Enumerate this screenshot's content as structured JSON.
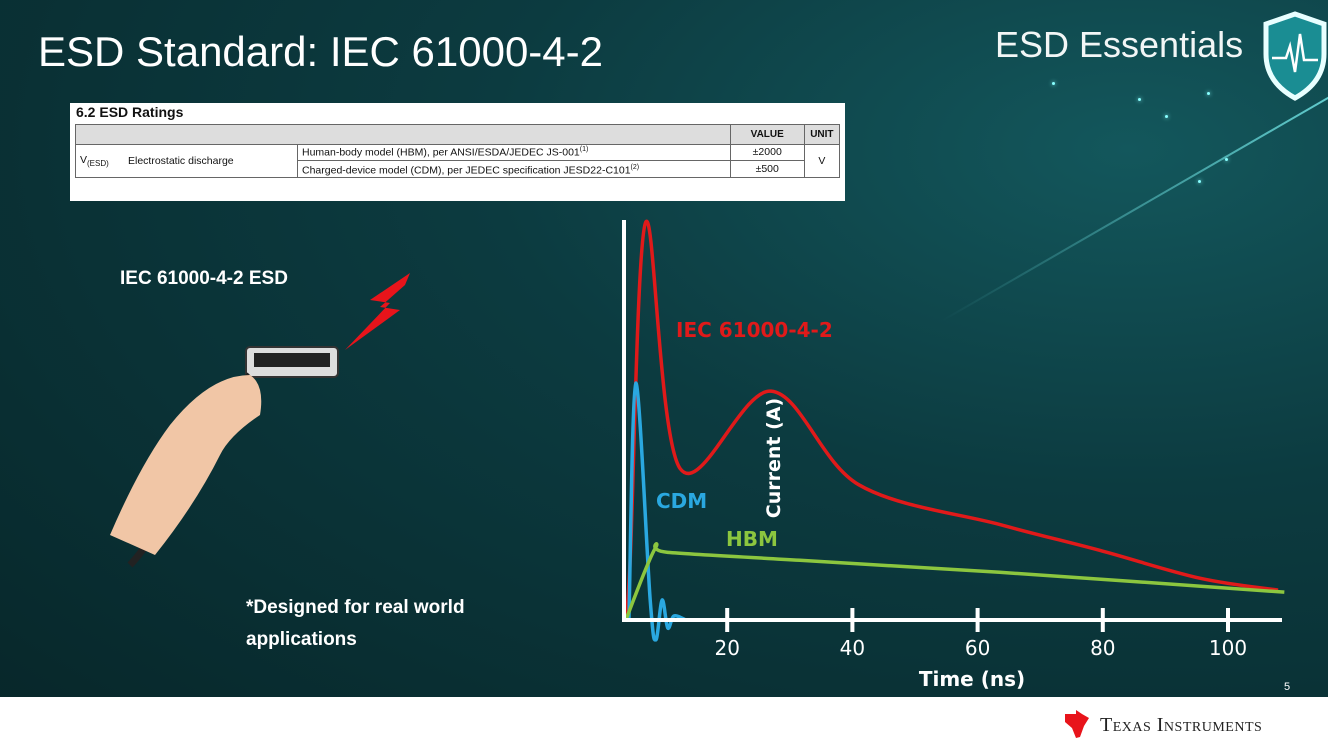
{
  "slide": {
    "title": "ESD Standard: IEC 61000-4-2",
    "brand": "ESD Essentials",
    "page_number": "5",
    "footer_logo": "Texas Instruments",
    "left_heading": "IEC 61000-4-2 ESD",
    "note": "*Designed for real world applications",
    "note_line1": "*Designed for real world",
    "note_line2": "applications"
  },
  "table": {
    "caption": "6.2   ESD Ratings",
    "headers": [
      "",
      "VALUE",
      "UNIT"
    ],
    "symbol": "V",
    "symbol_sub": "(ESD)",
    "parameter": "Electrostatic discharge",
    "rows": [
      {
        "condition": "Human-body model (HBM), per ANSI/ESDA/JEDEC JS-001",
        "note": "(1)",
        "value": "±2000"
      },
      {
        "condition": "Charged-device model (CDM), per JEDEC specification JESD22-C101",
        "note": "(2)",
        "value": "±500"
      }
    ],
    "unit": "V"
  },
  "chart_data": {
    "type": "line",
    "xlabel": "Time (ns)",
    "ylabel": "Current (A)",
    "xticks": [
      20,
      40,
      60,
      80,
      100
    ],
    "xlim": [
      3.5,
      110
    ],
    "ylim": [
      0,
      100
    ],
    "grid": false,
    "legend": "inline labels",
    "series": [
      {
        "name": "IEC 61000-4-2",
        "color": "#e01a1a",
        "x": [
          3.8,
          4.5,
          7,
          12.5,
          27,
          41,
          63.5,
          79.5,
          95.5,
          108
        ],
        "y": [
          0,
          15,
          100,
          38,
          57.5,
          34,
          24,
          17.5,
          10.5,
          7.5
        ]
      },
      {
        "name": "CDM",
        "color": "#2aa8e0",
        "x": [
          4.3,
          5.4,
          7.7,
          8.6,
          9.6,
          10.5,
          11.5,
          13.4
        ],
        "y": [
          0,
          59.5,
          5,
          -5,
          5,
          -2,
          1,
          0
        ]
      },
      {
        "name": "HBM",
        "color": "#8cc63f",
        "x": [
          3.8,
          8.5,
          10.5,
          31.6,
          63.5,
          109
        ],
        "y": [
          0,
          18,
          17,
          15,
          12,
          7
        ]
      }
    ]
  }
}
